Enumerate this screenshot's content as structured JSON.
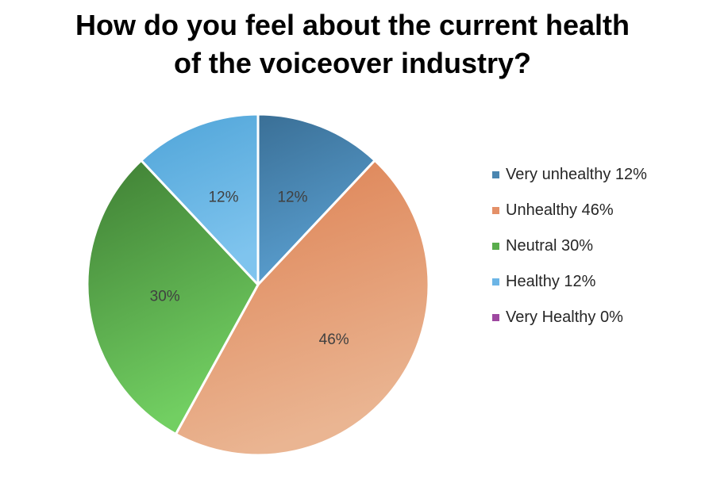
{
  "chart_data": {
    "type": "pie",
    "title": [
      "How do you feel about the current health",
      "of the voiceover industry?"
    ],
    "categories": [
      "Very unhealthy",
      "Unhealthy",
      "Neutral",
      "Healthy",
      "Very Healthy"
    ],
    "values": [
      12,
      46,
      30,
      12,
      0
    ],
    "data_labels": [
      "12%",
      "46%",
      "30%",
      "12%",
      ""
    ],
    "legend_labels": [
      "Very unhealthy 12%",
      "Unhealthy 46%",
      "Neutral 30%",
      "Healthy 12%",
      "Very Healthy 0%"
    ],
    "colors": [
      {
        "base": "#4a86b0",
        "light": "#5a9fd0",
        "dark": "#3a6f96"
      },
      {
        "base": "#e49068",
        "light": "#eab592",
        "dark": "#dd7f50"
      },
      {
        "base": "#59ad4c",
        "light": "#72cf62",
        "dark": "#3f7f34"
      },
      {
        "base": "#6cb5e6",
        "light": "#7fc4ee",
        "dark": "#4fa4d8"
      },
      {
        "base": "#9e48a0",
        "light": "#b45cb6",
        "dark": "#8a3a8c"
      }
    ],
    "legend_position": "right"
  }
}
